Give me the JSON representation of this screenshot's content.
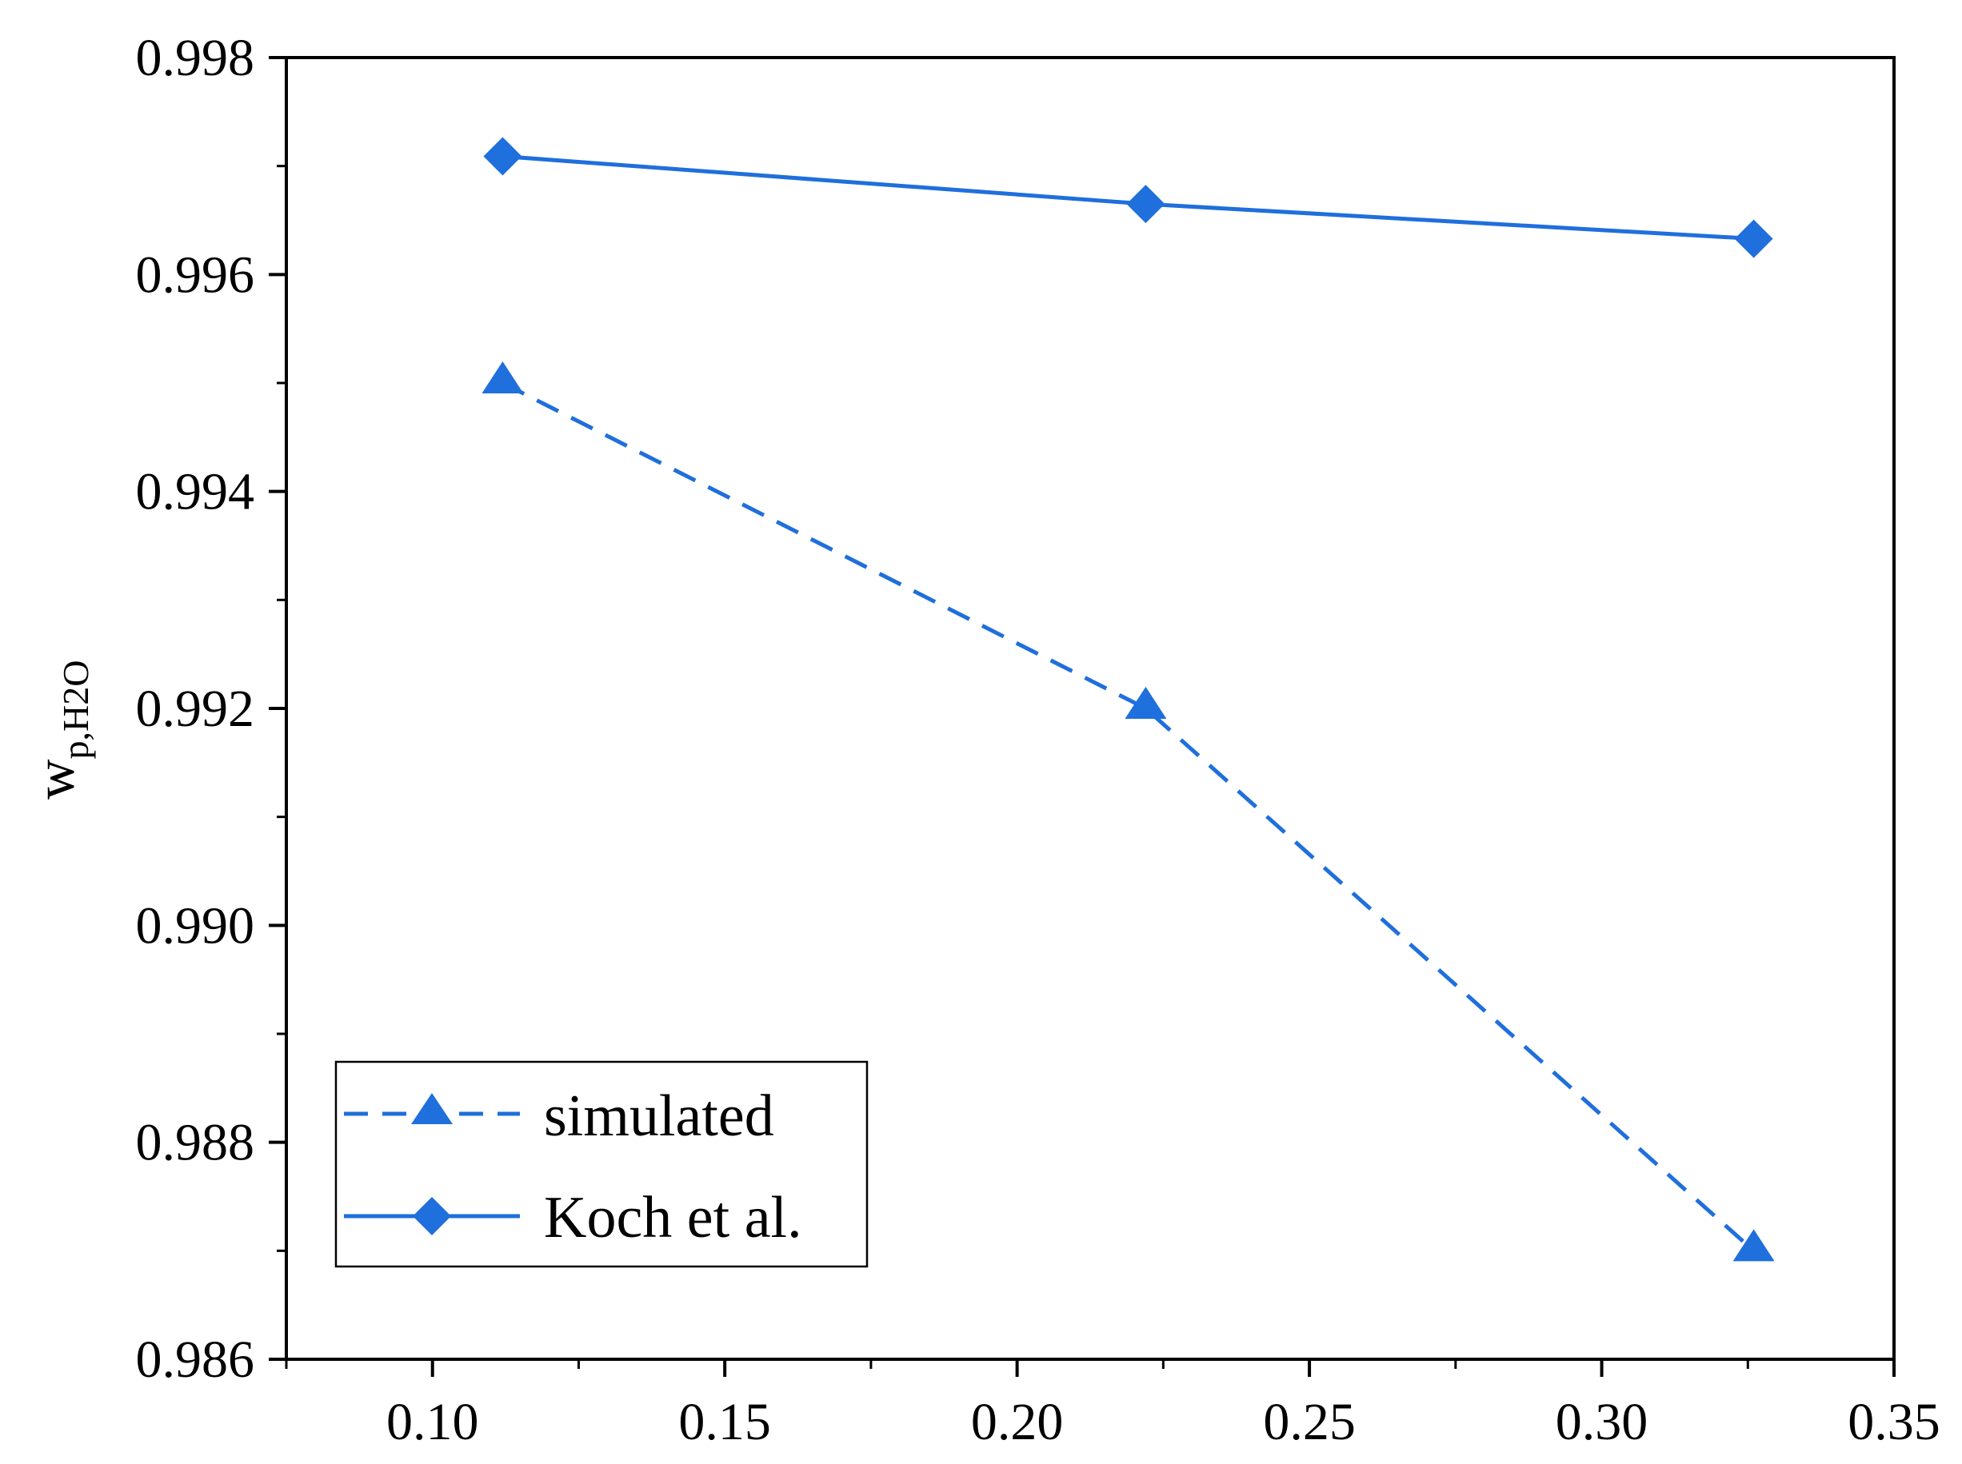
{
  "chart_data": {
    "type": "line",
    "title": "",
    "xlabel": "",
    "ylabel": {
      "main": "w",
      "subscript": "p,H2O"
    },
    "xlim": [
      0.075,
      0.35
    ],
    "ylim": [
      0.986,
      0.998
    ],
    "x_ticks": [
      0.1,
      0.15,
      0.2,
      0.25,
      0.3,
      0.35
    ],
    "x_tick_labels": [
      "0.10",
      "0.15",
      "0.20",
      "0.25",
      "0.30",
      "0.35"
    ],
    "y_ticks": [
      0.986,
      0.988,
      0.99,
      0.992,
      0.994,
      0.996,
      0.998
    ],
    "y_tick_labels": [
      "0.986",
      "0.988",
      "0.990",
      "0.992",
      "0.994",
      "0.996",
      "0.998"
    ],
    "legend_position": "bottom-left",
    "series": [
      {
        "name": "simulated",
        "style": "dashed",
        "marker": "triangle",
        "color": "#1f6fdc",
        "x": [
          0.112,
          0.222,
          0.326
        ],
        "y": [
          0.995,
          0.992,
          0.987
        ]
      },
      {
        "name": "Koch et al.",
        "style": "solid",
        "marker": "diamond",
        "color": "#1f6fdc",
        "x": [
          0.112,
          0.222,
          0.326
        ],
        "y": [
          0.99709,
          0.99665,
          0.99633
        ]
      }
    ]
  }
}
